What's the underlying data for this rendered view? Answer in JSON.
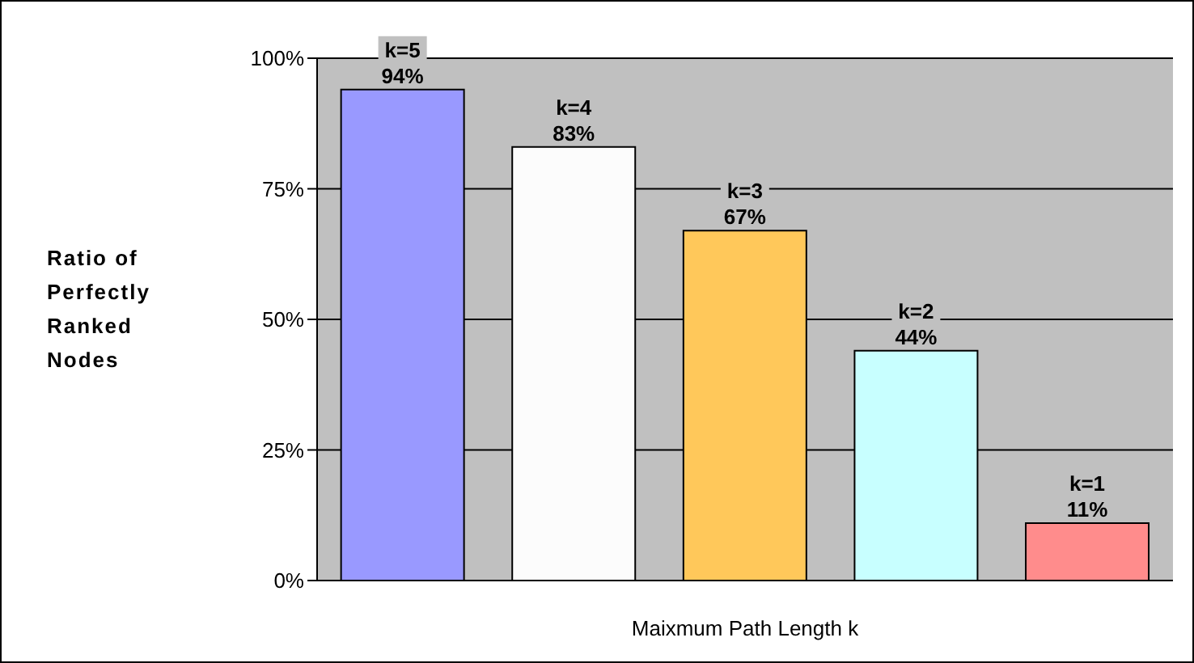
{
  "chart_data": {
    "type": "bar",
    "xlabel": "Maixmum Path Length k",
    "ylabel": "Ratio of Perfectly Ranked Nodes",
    "categories": [
      null,
      null,
      null,
      null,
      null
    ],
    "values": [
      94,
      83,
      67,
      44,
      11
    ],
    "colors": [
      "#9999ff",
      "#fcfcfc",
      "#ffc85a",
      "#c8ffff",
      "#ff8c8c"
    ],
    "value_labels": [
      "k=5\n94%",
      "k=4\n83%",
      "k=3\n67%",
      "k=2\n44%",
      "k=1\n11%"
    ],
    "ylim": [
      0,
      100
    ],
    "yticks": [
      {
        "value": 0,
        "label": "0%"
      },
      {
        "value": 25,
        "label": "25%"
      },
      {
        "value": 50,
        "label": "50%"
      },
      {
        "value": 75,
        "label": "75%"
      },
      {
        "value": 100,
        "label": "100%"
      }
    ],
    "grid": "y",
    "tick_labels": "y"
  }
}
